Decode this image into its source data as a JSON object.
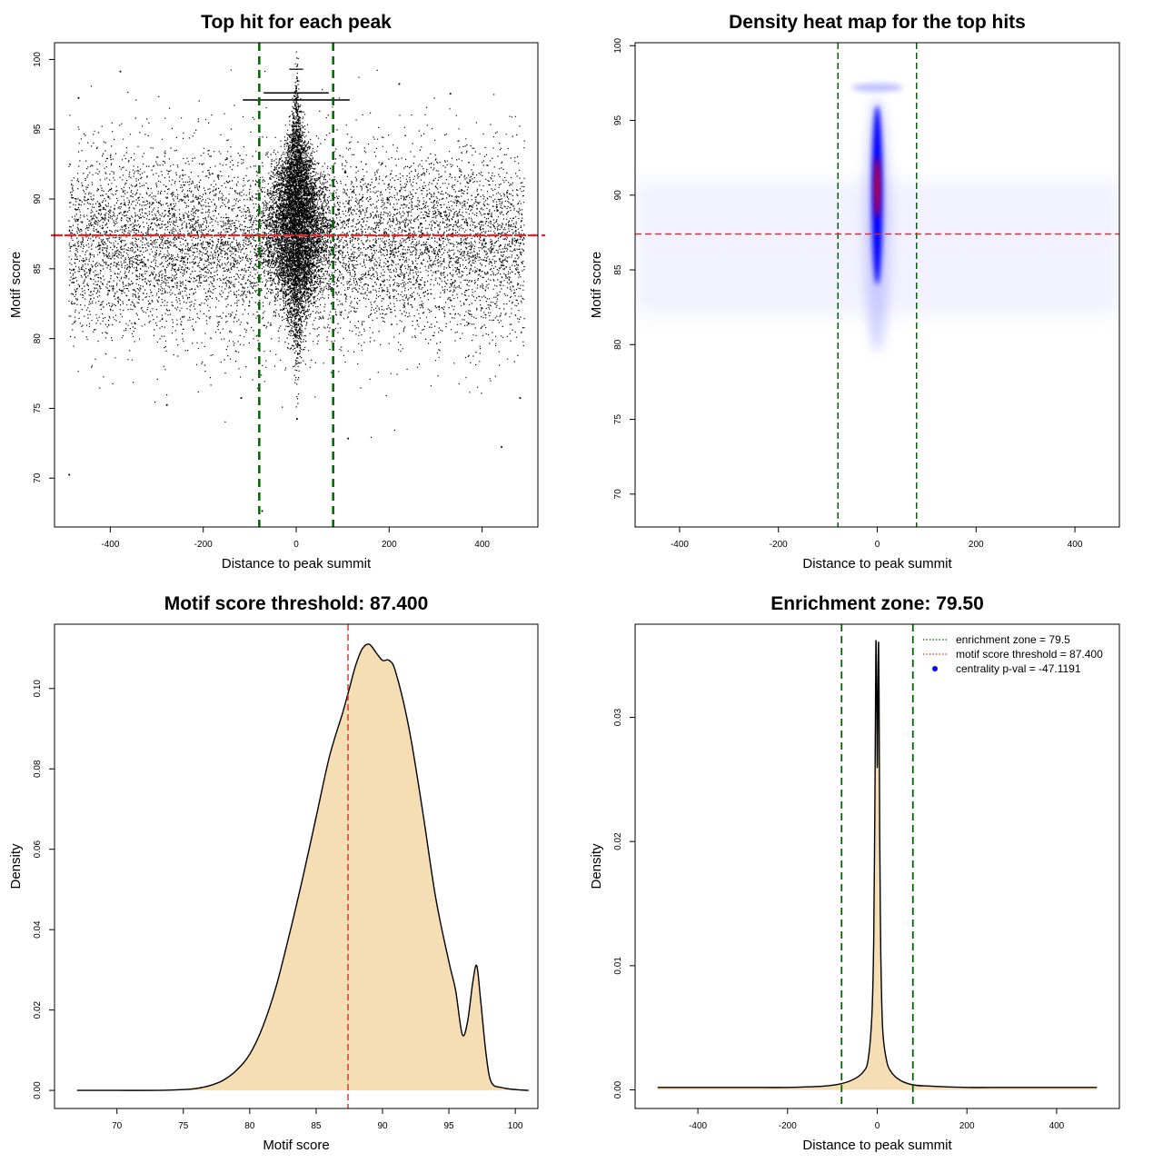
{
  "colors": {
    "points": "#000000",
    "enrichment_line": "#006400",
    "threshold_line": "#e0282a",
    "density_fill": "#f5deb3",
    "heat_low": "#ffffff",
    "heat_mid": "#0000ff",
    "heat_high": "#ff0000",
    "legend_dot": "#0000ff"
  },
  "chart_data": [
    {
      "id": "top-hits",
      "type": "scatter",
      "title": "Top hit for each peak",
      "xlabel": "Distance to peak summit",
      "ylabel": "Motif score",
      "xlim": [
        -520,
        520
      ],
      "ylim": [
        66.5,
        101.2
      ],
      "xticks": [
        -400,
        -200,
        0,
        200,
        400
      ],
      "yticks": [
        70,
        75,
        80,
        85,
        90,
        95,
        100
      ],
      "vlines": [
        -79.5,
        79.5
      ],
      "hline": 87.4,
      "sample_points": [
        {
          "x": -490,
          "y": 70.3
        },
        {
          "x": -470,
          "y": 97.3
        },
        {
          "x": -380,
          "y": 99.2
        },
        {
          "x": -280,
          "y": 75.3
        },
        {
          "x": -120,
          "y": 75.8
        },
        {
          "x": -75,
          "y": 67.7
        },
        {
          "x": 0,
          "y": 74.3
        },
        {
          "x": 110,
          "y": 72.9
        },
        {
          "x": 220,
          "y": 98.3
        },
        {
          "x": 330,
          "y": 97.6
        },
        {
          "x": 440,
          "y": 72.3
        },
        {
          "x": 480,
          "y": 75.8
        }
      ]
    },
    {
      "id": "heatmap",
      "type": "heatmap",
      "title": "Density heat map for the top hits",
      "xlabel": "Distance to peak summit",
      "ylabel": "Motif score",
      "xlim": [
        -490,
        490
      ],
      "ylim": [
        67.8,
        100.2
      ],
      "xticks": [
        -400,
        -200,
        0,
        200,
        400
      ],
      "yticks": [
        70,
        75,
        80,
        85,
        90,
        95,
        100
      ],
      "vlines": [
        -79.5,
        79.5
      ],
      "hline": 87.4
    },
    {
      "id": "score-density",
      "type": "area",
      "title": "Motif score threshold: 87.400",
      "xlabel": "Motif score",
      "ylabel": "Density",
      "xlim": [
        65.3,
        101.7
      ],
      "ylim": [
        -0.0045,
        0.116
      ],
      "xticks": [
        70,
        75,
        80,
        85,
        90,
        95,
        100
      ],
      "yticks": [
        0.0,
        0.02,
        0.04,
        0.06,
        0.08,
        0.1
      ],
      "ytick_labels": [
        "0.00",
        "0.02",
        "0.04",
        "0.06",
        "0.08",
        "0.10"
      ],
      "vline": 87.4,
      "x": [
        67,
        70,
        73,
        75,
        76,
        77,
        78,
        79,
        80,
        81,
        82,
        83,
        84,
        85,
        86,
        87,
        87.5,
        88,
        88.5,
        89,
        89.5,
        90,
        90.5,
        91,
        92,
        93,
        94,
        95,
        95.5,
        96,
        96.4,
        96.8,
        97.1,
        97.4,
        97.8,
        98.2,
        99,
        100,
        101
      ],
      "y": [
        0,
        0,
        0,
        0.0002,
        0.0005,
        0.0012,
        0.0025,
        0.005,
        0.009,
        0.016,
        0.026,
        0.039,
        0.053,
        0.068,
        0.083,
        0.094,
        0.1,
        0.106,
        0.11,
        0.111,
        0.109,
        0.107,
        0.107,
        0.104,
        0.09,
        0.07,
        0.048,
        0.032,
        0.025,
        0.014,
        0.017,
        0.027,
        0.031,
        0.022,
        0.009,
        0.002,
        0.0007,
        0.0002,
        0
      ]
    },
    {
      "id": "distance-density",
      "type": "area",
      "title": "Enrichment zone: 79.50",
      "xlabel": "Distance to peak summit",
      "ylabel": "Density",
      "xlim": [
        -540,
        540
      ],
      "ylim": [
        -0.0015,
        0.0375
      ],
      "xticks": [
        -400,
        -200,
        0,
        200,
        400
      ],
      "yticks": [
        0.0,
        0.01,
        0.02,
        0.03
      ],
      "ytick_labels": [
        "0.00",
        "0.01",
        "0.02",
        "0.03"
      ],
      "vlines": [
        -79.5,
        79.5
      ],
      "x": [
        -490,
        -300,
        -200,
        -120,
        -80,
        -50,
        -30,
        -20,
        -12,
        -8,
        -5,
        -3,
        -1,
        0,
        1,
        2,
        3,
        4,
        5,
        6,
        8,
        12,
        20,
        30,
        50,
        80,
        120,
        200,
        300,
        490
      ],
      "y": [
        0.0002,
        0.0002,
        0.0002,
        0.0003,
        0.0005,
        0.0009,
        0.0015,
        0.0025,
        0.006,
        0.012,
        0.024,
        0.036,
        0.031,
        0.026,
        0.029,
        0.034,
        0.036,
        0.032,
        0.024,
        0.018,
        0.011,
        0.005,
        0.0025,
        0.0015,
        0.0008,
        0.0004,
        0.0003,
        0.0002,
        0.0002,
        0.0002
      ],
      "legend": [
        {
          "label": "enrichment zone = 79.5",
          "style": "dotted",
          "color": "#006400"
        },
        {
          "label": "motif score threshold = 87.400",
          "style": "dotted",
          "color": "#e0282a"
        },
        {
          "label": "centrality p-val = -47.1191",
          "style": "dot",
          "color": "#0000ff"
        }
      ]
    }
  ]
}
